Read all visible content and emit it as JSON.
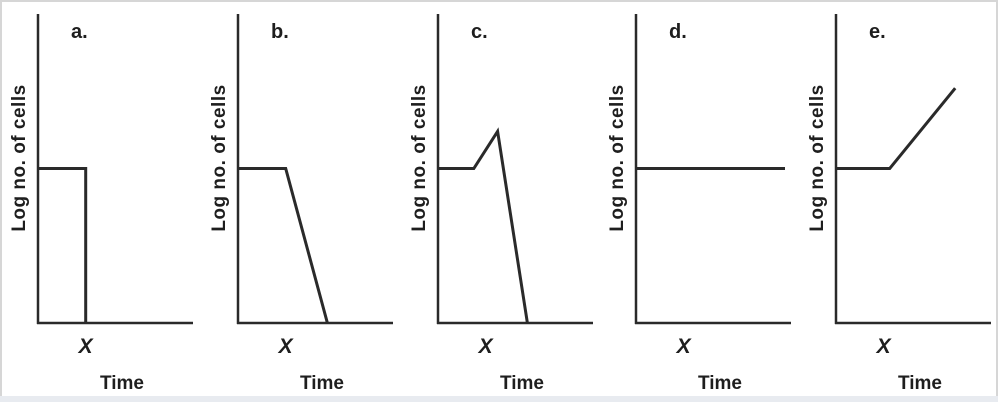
{
  "chart_data": [
    {
      "type": "line",
      "panel_label": "a.",
      "xlabel": "Time",
      "ylabel": "Log no. of cells",
      "x_marker": {
        "label": "X",
        "x": 4
      },
      "xlim": [
        0,
        13
      ],
      "ylim": [
        0,
        10
      ],
      "series": [
        {
          "x": [
            0,
            4,
            4
          ],
          "y": [
            5,
            5,
            0
          ]
        }
      ]
    },
    {
      "type": "line",
      "panel_label": "b.",
      "xlabel": "Time",
      "ylabel": "Log no. of cells",
      "x_marker": {
        "label": "X",
        "x": 4
      },
      "xlim": [
        0,
        13
      ],
      "ylim": [
        0,
        10
      ],
      "series": [
        {
          "x": [
            0,
            4,
            7.5
          ],
          "y": [
            5,
            5,
            0
          ]
        }
      ]
    },
    {
      "type": "line",
      "panel_label": "c.",
      "xlabel": "Time",
      "ylabel": "Log no. of cells",
      "x_marker": {
        "label": "X",
        "x": 4
      },
      "xlim": [
        0,
        13
      ],
      "ylim": [
        0,
        10
      ],
      "series": [
        {
          "x": [
            0,
            3,
            5,
            7.5
          ],
          "y": [
            5,
            5,
            6.2,
            0
          ]
        }
      ]
    },
    {
      "type": "line",
      "panel_label": "d.",
      "xlabel": "Time",
      "ylabel": "Log no. of cells",
      "x_marker": {
        "label": "X",
        "x": 4
      },
      "xlim": [
        0,
        13
      ],
      "ylim": [
        0,
        10
      ],
      "series": [
        {
          "x": [
            0,
            12.5
          ],
          "y": [
            5,
            5
          ]
        }
      ]
    },
    {
      "type": "line",
      "panel_label": "e.",
      "xlabel": "Time",
      "ylabel": "Log no. of cells",
      "x_marker": {
        "label": "X",
        "x": 4
      },
      "xlim": [
        0,
        13
      ],
      "ylim": [
        0,
        10
      ],
      "series": [
        {
          "x": [
            0,
            4.5,
            10
          ],
          "y": [
            5,
            5,
            7.6
          ]
        }
      ]
    }
  ]
}
